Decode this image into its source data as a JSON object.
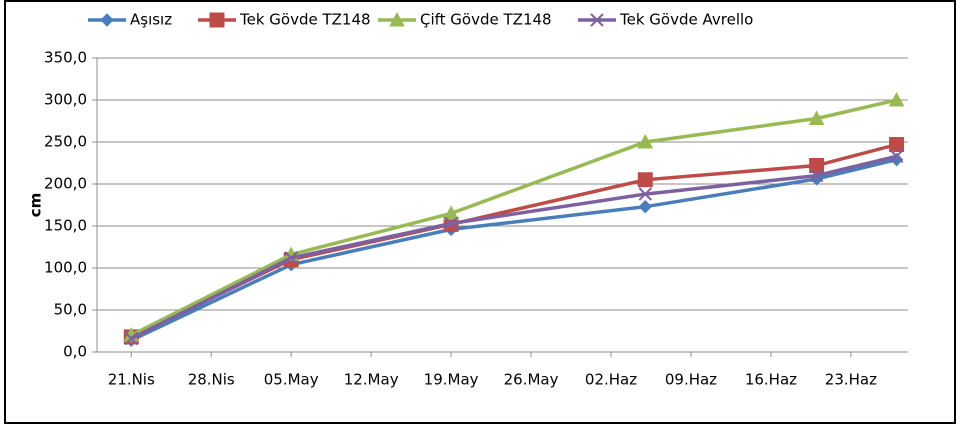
{
  "chart_data": {
    "type": "line",
    "y_label": "cm",
    "x": [
      "04-21",
      "05-05",
      "05-19",
      "06-05",
      "06-20",
      "06-27"
    ],
    "xlim": [
      "04-18",
      "06-28"
    ],
    "xticks": [
      {
        "value": "04-21",
        "label": "21.Nis"
      },
      {
        "value": "04-28",
        "label": "28.Nis"
      },
      {
        "value": "05-05",
        "label": "05.May"
      },
      {
        "value": "05-12",
        "label": "12.May"
      },
      {
        "value": "05-19",
        "label": "19.May"
      },
      {
        "value": "05-26",
        "label": "26.May"
      },
      {
        "value": "06-02",
        "label": "02.Haz"
      },
      {
        "value": "06-09",
        "label": "09.Haz"
      },
      {
        "value": "06-16",
        "label": "16.Haz"
      },
      {
        "value": "06-23",
        "label": "23.Haz"
      }
    ],
    "ylim": [
      0,
      350
    ],
    "yticks": [
      {
        "value": 0,
        "label": "0,0"
      },
      {
        "value": 50,
        "label": "50,0"
      },
      {
        "value": 100,
        "label": "100,0"
      },
      {
        "value": 150,
        "label": "150,0"
      },
      {
        "value": 200,
        "label": "200,0"
      },
      {
        "value": 250,
        "label": "250,0"
      },
      {
        "value": 300,
        "label": "300,0"
      },
      {
        "value": 350,
        "label": "350,0"
      }
    ],
    "grid": true,
    "legend": "top",
    "series": [
      {
        "name": "Aşısız",
        "color": "#4a7ebb",
        "marker": "diamond",
        "values": [
          14,
          104,
          146,
          173,
          206,
          229
        ]
      },
      {
        "name": "Tek Gövde TZ148",
        "color": "#be4b48",
        "marker": "square",
        "values": [
          18,
          110,
          152,
          205,
          222,
          247
        ]
      },
      {
        "name": "Çift Gövde TZ148",
        "color": "#98b954",
        "marker": "triangle",
        "values": [
          20,
          116,
          165,
          250,
          278,
          300
        ]
      },
      {
        "name": "Tek Gövde Avrello",
        "color": "#7d60a0",
        "marker": "x",
        "values": [
          16,
          112,
          153,
          188,
          210,
          233
        ]
      }
    ]
  }
}
